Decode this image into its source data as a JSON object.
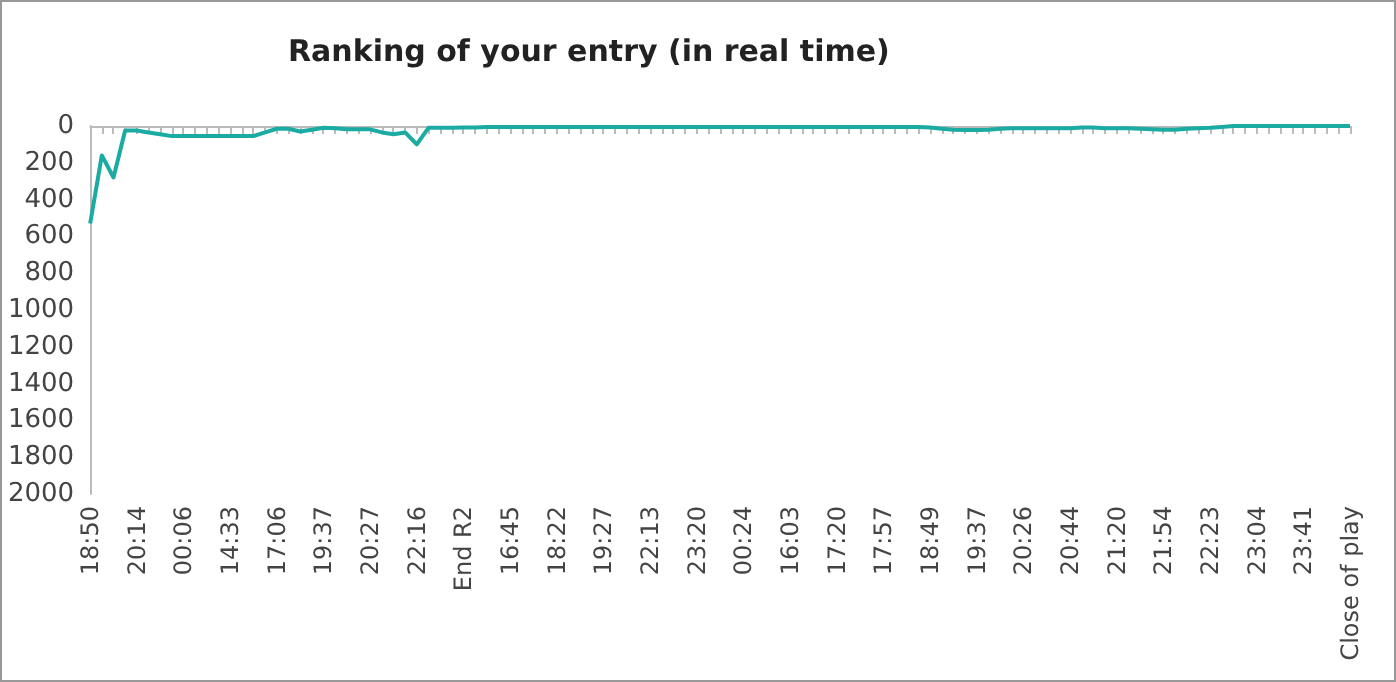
{
  "chart_data": {
    "type": "line",
    "title": "Ranking of your entry (in real time)",
    "categories": [
      "18:50",
      null,
      null,
      null,
      "20:14",
      null,
      null,
      null,
      "00:06",
      null,
      null,
      null,
      "14:33",
      null,
      null,
      null,
      "17:06",
      null,
      null,
      null,
      "19:37",
      null,
      null,
      null,
      "20:27",
      null,
      null,
      null,
      "22:16",
      null,
      null,
      null,
      "End R2",
      null,
      null,
      null,
      "16:45",
      null,
      null,
      null,
      "18:22",
      null,
      null,
      null,
      "19:27",
      null,
      null,
      null,
      "22:13",
      null,
      null,
      null,
      "23:20",
      null,
      null,
      null,
      "00:24",
      null,
      null,
      null,
      "16:03",
      null,
      null,
      null,
      "17:20",
      null,
      null,
      null,
      "17:57",
      null,
      null,
      null,
      "18:49",
      null,
      null,
      null,
      "19:37",
      null,
      null,
      null,
      "20:26",
      null,
      null,
      null,
      "20:44",
      null,
      null,
      null,
      "21:20",
      null,
      null,
      null,
      "21:54",
      null,
      null,
      null,
      "22:23",
      null,
      null,
      null,
      "23:04",
      null,
      null,
      null,
      "23:41",
      null,
      null,
      null,
      "Close of play"
    ],
    "series": [
      {
        "color": "#1aaba3",
        "values": [
          530,
          160,
          280,
          25,
          25,
          35,
          45,
          55,
          55,
          55,
          55,
          55,
          55,
          55,
          55,
          35,
          15,
          15,
          30,
          20,
          10,
          12,
          18,
          18,
          18,
          35,
          45,
          35,
          100,
          10,
          10,
          10,
          8,
          8,
          5,
          5,
          5,
          5,
          5,
          5,
          5,
          5,
          5,
          5,
          5,
          5,
          5,
          5,
          5,
          5,
          5,
          5,
          5,
          5,
          5,
          5,
          5,
          5,
          5,
          5,
          5,
          5,
          5,
          5,
          5,
          5,
          5,
          5,
          5,
          5,
          5,
          5,
          8,
          15,
          20,
          22,
          22,
          20,
          15,
          12,
          12,
          12,
          12,
          12,
          12,
          8,
          8,
          12,
          12,
          12,
          15,
          18,
          20,
          20,
          15,
          12,
          10,
          5,
          0,
          0,
          0,
          0,
          0,
          0,
          0,
          0,
          0,
          0,
          0
        ]
      }
    ],
    "ylim": [
      2000,
      0
    ],
    "yticks": [
      0,
      200,
      400,
      600,
      800,
      1000,
      1200,
      1400,
      1600,
      1800,
      2000
    ],
    "grid": false,
    "marker": "none",
    "line_style": "solid"
  }
}
